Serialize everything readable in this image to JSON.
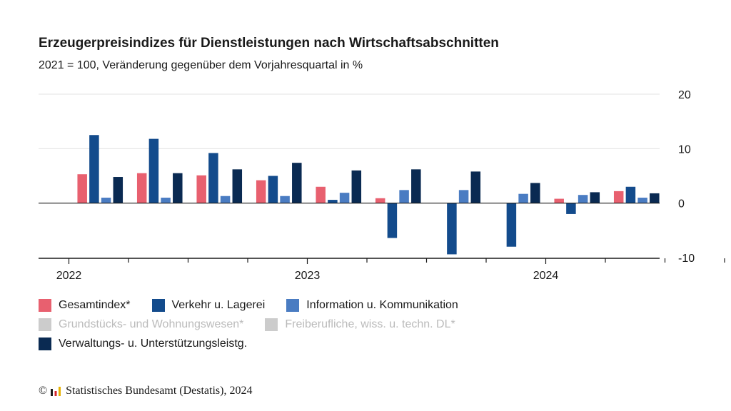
{
  "chart_data": {
    "type": "bar",
    "title": "Erzeugerpreisindizes für Dienstleistungen nach Wirtschaftsabschnitten",
    "subtitle": "2021 = 100, Veränderung gegenüber dem Vorjahresquartal in %",
    "ylim": [
      -10,
      20
    ],
    "yticks": [
      "20",
      "10",
      "0",
      "-10"
    ],
    "ytick_values": [
      20,
      10,
      0,
      -10
    ],
    "year_labels": [
      "2022",
      "2023",
      "2024"
    ],
    "quarters": [
      "2022 Q1",
      "2022 Q2",
      "2022 Q3",
      "2022 Q4",
      "2023 Q1",
      "2023 Q2",
      "2023 Q3",
      "2023 Q4",
      "2024 Q1",
      "2024 Q2"
    ],
    "grid": true,
    "legend_position": "bottom",
    "series": [
      {
        "name": "Gesamtindex*",
        "color": "#e8606f",
        "active": true,
        "values": [
          5.3,
          5.5,
          5.1,
          4.2,
          3.0,
          0.9,
          null,
          null,
          0.8,
          2.2
        ]
      },
      {
        "name": "Verkehr u. Lagerei",
        "color": "#134b8c",
        "active": true,
        "values": [
          12.5,
          11.8,
          9.2,
          5.0,
          0.6,
          -6.4,
          -9.4,
          -8.0,
          -2.0,
          3.0
        ]
      },
      {
        "name": "Information u. Kommunikation",
        "color": "#4a7cc2",
        "active": true,
        "values": [
          1.0,
          1.0,
          1.3,
          1.3,
          1.9,
          2.4,
          2.4,
          1.7,
          1.5,
          1.0
        ]
      },
      {
        "name": "Grundstücks- und Wohnungswesen*",
        "color": "#cccccc",
        "active": false,
        "values": []
      },
      {
        "name": "Freiberufliche, wiss. u. techn. DL*",
        "color": "#cccccc",
        "active": false,
        "values": []
      },
      {
        "name": "Verwaltungs- u. Unterstützungsleistg.",
        "color": "#0a2a52",
        "active": true,
        "values": [
          4.8,
          5.5,
          6.2,
          7.4,
          6.0,
          6.2,
          5.8,
          3.7,
          2.0,
          1.8
        ]
      }
    ]
  },
  "footer": {
    "copyright": "©",
    "source": "Statistisches Bundesamt (Destatis), 2024"
  }
}
